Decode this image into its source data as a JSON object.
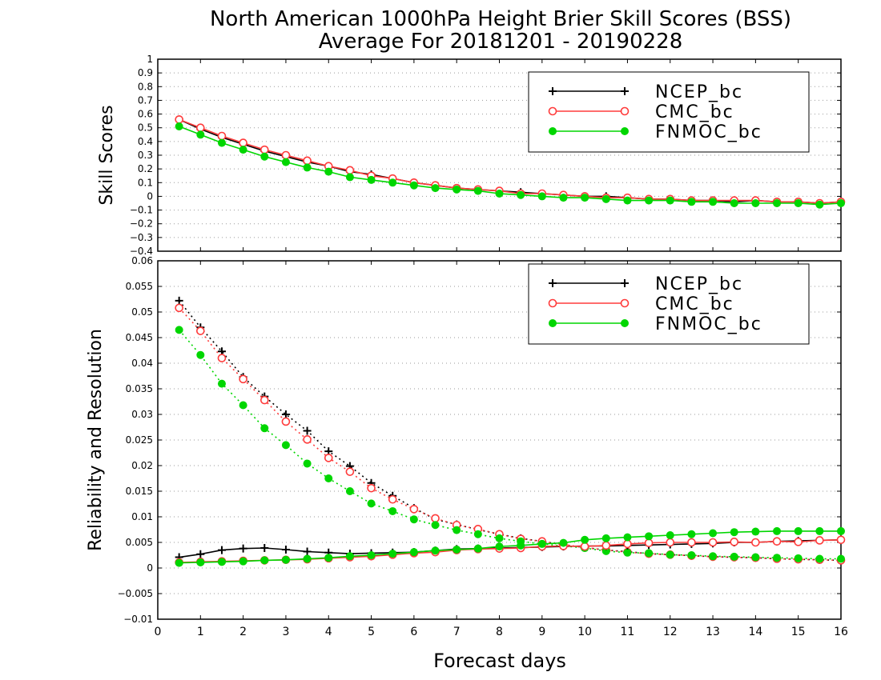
{
  "title": {
    "line1": "North American 1000hPa Height Brier Skill Scores (BSS)",
    "line2": "Average For 20181201 - 20190228"
  },
  "xlabel": "Forecast days",
  "colors": {
    "NCEP_bc": "#000000",
    "CMC_bc": "#ff3b3b",
    "FNMOC_bc": "#00d600"
  },
  "chart_data": [
    {
      "type": "line",
      "ylabel": "Skill Scores",
      "xlim": [
        0,
        16
      ],
      "ylim": [
        -0.4,
        1
      ],
      "xticks": [
        0,
        1,
        2,
        3,
        4,
        5,
        6,
        7,
        8,
        9,
        10,
        11,
        12,
        13,
        14,
        15,
        16
      ],
      "yticks": [
        -0.4,
        -0.3,
        -0.2,
        -0.1,
        0,
        0.1,
        0.2,
        0.3,
        0.4,
        0.5,
        0.6,
        0.7,
        0.8,
        0.9,
        1
      ],
      "ytick_labels": [
        "−0.4",
        "−0.3",
        "−0.2",
        "−0.1",
        "0",
        "0.1",
        "0.2",
        "0.3",
        "0.4",
        "0.5",
        "0.6",
        "0.7",
        "0.8",
        "0.9",
        "1"
      ],
      "grid": true,
      "legend": "top-right",
      "legend_entries": [
        "NCEP_bc",
        "CMC_bc",
        "FNMOC_bc"
      ],
      "x": [
        0.5,
        1,
        1.5,
        2,
        2.5,
        3,
        3.5,
        4,
        4.5,
        5,
        5.5,
        6,
        6.5,
        7,
        7.5,
        8,
        8.5,
        9,
        9.5,
        10,
        10.5,
        11,
        11.5,
        12,
        12.5,
        13,
        13.5,
        14,
        14.5,
        15,
        15.5,
        16
      ],
      "series": [
        {
          "name": "NCEP_bc",
          "marker": "plus",
          "style": "solid",
          "values": [
            0.56,
            0.49,
            0.43,
            0.38,
            0.33,
            0.29,
            0.25,
            0.22,
            0.18,
            0.16,
            0.13,
            0.1,
            0.08,
            0.06,
            0.05,
            0.04,
            0.03,
            0.02,
            0.01,
            0.0,
            0.0,
            -0.01,
            -0.02,
            -0.02,
            -0.03,
            -0.03,
            -0.04,
            -0.03,
            -0.04,
            -0.04,
            -0.05,
            -0.04
          ]
        },
        {
          "name": "CMC_bc",
          "marker": "circle-open",
          "style": "solid",
          "values": [
            0.56,
            0.5,
            0.44,
            0.39,
            0.34,
            0.3,
            0.26,
            0.22,
            0.19,
            0.15,
            0.13,
            0.1,
            0.08,
            0.06,
            0.05,
            0.04,
            0.02,
            0.02,
            0.01,
            0.0,
            -0.01,
            -0.01,
            -0.02,
            -0.02,
            -0.03,
            -0.03,
            -0.03,
            -0.03,
            -0.04,
            -0.04,
            -0.05,
            -0.04
          ]
        },
        {
          "name": "FNMOC_bc",
          "marker": "circle-filled",
          "style": "solid",
          "values": [
            0.51,
            0.45,
            0.39,
            0.34,
            0.29,
            0.25,
            0.21,
            0.18,
            0.14,
            0.12,
            0.1,
            0.08,
            0.06,
            0.05,
            0.04,
            0.02,
            0.01,
            0.0,
            -0.01,
            -0.01,
            -0.02,
            -0.03,
            -0.03,
            -0.03,
            -0.04,
            -0.04,
            -0.05,
            -0.05,
            -0.05,
            -0.05,
            -0.06,
            -0.05
          ]
        }
      ]
    },
    {
      "type": "line",
      "ylabel": "Reliability and Resolution",
      "xlim": [
        0,
        16
      ],
      "ylim": [
        -0.01,
        0.06
      ],
      "xticks": [
        0,
        1,
        2,
        3,
        4,
        5,
        6,
        7,
        8,
        9,
        10,
        11,
        12,
        13,
        14,
        15,
        16
      ],
      "yticks": [
        -0.01,
        -0.005,
        0,
        0.005,
        0.01,
        0.015,
        0.02,
        0.025,
        0.03,
        0.035,
        0.04,
        0.045,
        0.05,
        0.055,
        0.06
      ],
      "ytick_labels": [
        "−0.01",
        "−0.005",
        "0",
        "0.005",
        "0.01",
        "0.015",
        "0.02",
        "0.025",
        "0.03",
        "0.035",
        "0.04",
        "0.045",
        "0.05",
        "0.055",
        "0.06"
      ],
      "grid": true,
      "legend": "top-right",
      "legend_entries": [
        "NCEP_bc",
        "CMC_bc",
        "FNMOC_bc"
      ],
      "x": [
        0.5,
        1,
        1.5,
        2,
        2.5,
        3,
        3.5,
        4,
        4.5,
        5,
        5.5,
        6,
        6.5,
        7,
        7.5,
        8,
        8.5,
        9,
        9.5,
        10,
        10.5,
        11,
        11.5,
        12,
        12.5,
        13,
        13.5,
        14,
        14.5,
        15,
        15.5,
        16
      ],
      "series": [
        {
          "name": "NCEP_bc",
          "kind": "resolution",
          "marker": "plus",
          "style": "dotted",
          "values": [
            0.0522,
            0.047,
            0.0423,
            0.0373,
            0.0335,
            0.03,
            0.0268,
            0.0228,
            0.0199,
            0.0166,
            0.0141,
            0.0117,
            0.0095,
            0.0085,
            0.0075,
            0.0066,
            0.0058,
            0.0052,
            0.0045,
            0.004,
            0.0035,
            0.0032,
            0.0028,
            0.0026,
            0.0024,
            0.0022,
            0.0021,
            0.002,
            0.0018,
            0.0017,
            0.0016,
            0.0015
          ]
        },
        {
          "name": "CMC_bc",
          "kind": "resolution",
          "marker": "circle-open",
          "style": "dotted",
          "values": [
            0.0508,
            0.0463,
            0.041,
            0.0369,
            0.0328,
            0.0286,
            0.0251,
            0.0215,
            0.0188,
            0.0156,
            0.0134,
            0.0115,
            0.0097,
            0.0084,
            0.0076,
            0.0066,
            0.0057,
            0.0052,
            0.0046,
            0.004,
            0.0035,
            0.0031,
            0.0028,
            0.0026,
            0.0024,
            0.0022,
            0.0021,
            0.002,
            0.0018,
            0.0017,
            0.0016,
            0.0015
          ]
        },
        {
          "name": "FNMOC_bc",
          "kind": "resolution",
          "marker": "circle-filled",
          "style": "dotted",
          "values": [
            0.0465,
            0.0416,
            0.036,
            0.0318,
            0.0273,
            0.024,
            0.0204,
            0.0175,
            0.015,
            0.0126,
            0.0111,
            0.0095,
            0.0084,
            0.0074,
            0.0066,
            0.0058,
            0.0052,
            0.0047,
            0.0043,
            0.0039,
            0.0033,
            0.003,
            0.0029,
            0.0026,
            0.0025,
            0.0023,
            0.0022,
            0.0021,
            0.002,
            0.0019,
            0.0018,
            0.0018
          ]
        },
        {
          "name": "NCEP_bc",
          "kind": "reliability",
          "marker": "plus",
          "style": "solid",
          "values": [
            0.0021,
            0.0027,
            0.0035,
            0.0038,
            0.0039,
            0.0036,
            0.0032,
            0.003,
            0.0028,
            0.0029,
            0.003,
            0.0031,
            0.0034,
            0.0037,
            0.0038,
            0.0039,
            0.004,
            0.0041,
            0.0042,
            0.0043,
            0.0043,
            0.0044,
            0.0045,
            0.0046,
            0.0047,
            0.0048,
            0.005,
            0.005,
            0.0052,
            0.0053,
            0.0054,
            0.0055
          ]
        },
        {
          "name": "CMC_bc",
          "kind": "reliability",
          "marker": "circle-open",
          "style": "solid",
          "values": [
            0.0011,
            0.0012,
            0.0013,
            0.0014,
            0.0015,
            0.0016,
            0.0017,
            0.0019,
            0.0021,
            0.0023,
            0.0026,
            0.0029,
            0.0031,
            0.0035,
            0.0037,
            0.0038,
            0.0039,
            0.0042,
            0.0043,
            0.0042,
            0.0044,
            0.0047,
            0.0049,
            0.005,
            0.005,
            0.005,
            0.0051,
            0.005,
            0.0052,
            0.0051,
            0.0054,
            0.0055
          ]
        },
        {
          "name": "FNMOC_bc",
          "kind": "reliability",
          "marker": "circle-filled",
          "style": "solid",
          "values": [
            0.001,
            0.0011,
            0.0012,
            0.0013,
            0.0015,
            0.0016,
            0.0018,
            0.002,
            0.0023,
            0.0025,
            0.0028,
            0.0031,
            0.0034,
            0.0036,
            0.0038,
            0.0042,
            0.0044,
            0.0047,
            0.0049,
            0.0055,
            0.0058,
            0.006,
            0.0062,
            0.0064,
            0.0066,
            0.0068,
            0.007,
            0.0071,
            0.0072,
            0.0072,
            0.0072,
            0.0072
          ]
        }
      ]
    }
  ]
}
